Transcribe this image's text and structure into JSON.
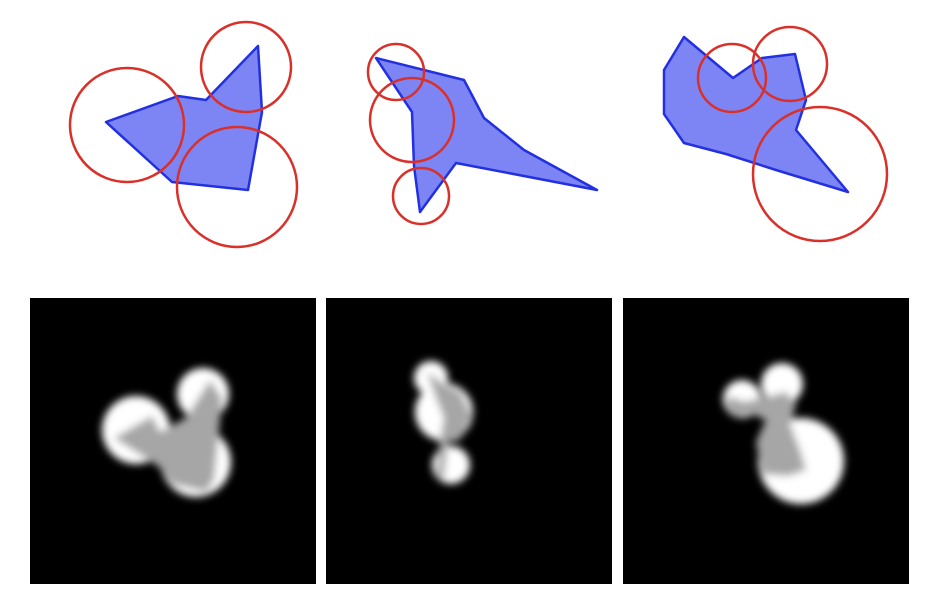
{
  "colors": {
    "polygon_fill": "#7d85f5",
    "polygon_stroke": "#2230e0",
    "circle_stroke": "#d9302a",
    "panel_background": "#000000",
    "blob_white": "#ffffff",
    "blob_gray": "#a6a6a6",
    "page_background": "#ffffff"
  },
  "top_row": [
    {
      "shape": "filled-polygon",
      "circles": 3
    },
    {
      "shape": "filled-polygon",
      "circles": 3
    },
    {
      "shape": "filled-polygon",
      "circles": 3
    }
  ],
  "bottom_row": [
    {
      "panel": "blurred-render",
      "blobs": 3
    },
    {
      "panel": "blurred-render",
      "blobs": 3
    },
    {
      "panel": "blurred-render",
      "blobs": 3
    }
  ]
}
